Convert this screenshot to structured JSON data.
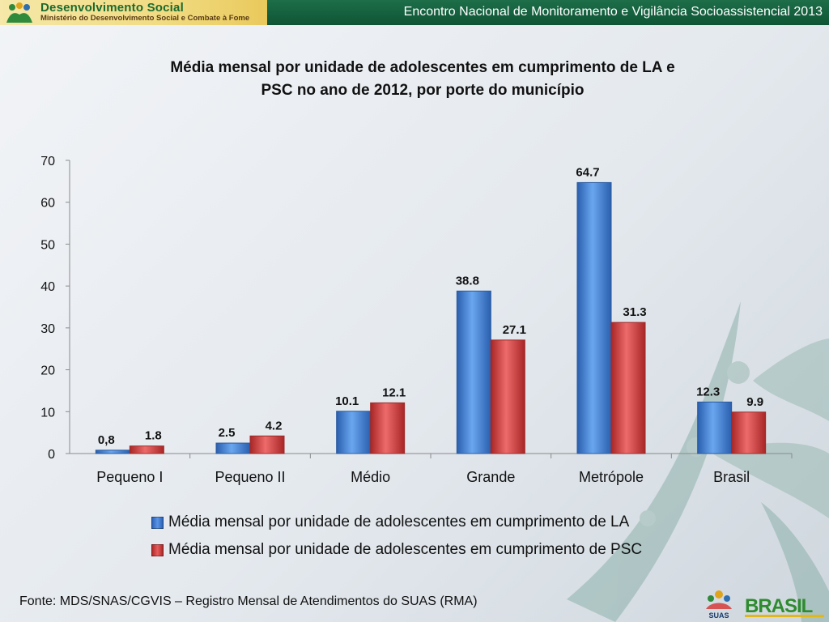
{
  "header": {
    "org_title": "Desenvolvimento Social",
    "org_subtitle": "Ministério do Desenvolvimento Social e Combate à Fome",
    "event_title": "Encontro Nacional de Monitoramento e Vigilância Socioassistencial 2013"
  },
  "footer": {
    "source": "Fonte: MDS/SNAS/CGVIS – Registro Mensal de Atendimentos do SUAS (RMA)",
    "logo_brasil_text": "BRASIL",
    "logo_suas_text": "SUAS"
  },
  "colors": {
    "la": "#3a7bd5",
    "psc": "#d63b3b",
    "header_green": "#1d6e49"
  },
  "chart_data": {
    "type": "bar",
    "title_line1": "Média mensal por unidade de adolescentes em cumprimento de LA e",
    "title_line2": "PSC no ano de 2012, por porte do município",
    "categories": [
      "Pequeno I",
      "Pequeno II",
      "Médio",
      "Grande",
      "Metrópole",
      "Brasil"
    ],
    "series": [
      {
        "name": "Média mensal por unidade de adolescentes em cumprimento de LA",
        "values": [
          0.8,
          2.5,
          10.1,
          38.8,
          64.7,
          12.3
        ],
        "labels": [
          "0,8",
          "2.5",
          "10.1",
          "38.8",
          "64.7",
          "12.3"
        ],
        "color": "#3a7bd5"
      },
      {
        "name": "Média mensal por unidade de adolescentes em cumprimento de PSC",
        "values": [
          1.8,
          4.2,
          12.1,
          27.1,
          31.3,
          9.9
        ],
        "labels": [
          "1.8",
          "4.2",
          "12.1",
          "27.1",
          "31.3",
          "9.9"
        ],
        "color": "#d63b3b"
      }
    ],
    "yticks": [
      "0",
      "10",
      "20",
      "30",
      "40",
      "50",
      "60",
      "70"
    ],
    "ylim": [
      0,
      70
    ],
    "xlabel": "",
    "ylabel": "",
    "grid": false,
    "legend_position": "bottom"
  }
}
